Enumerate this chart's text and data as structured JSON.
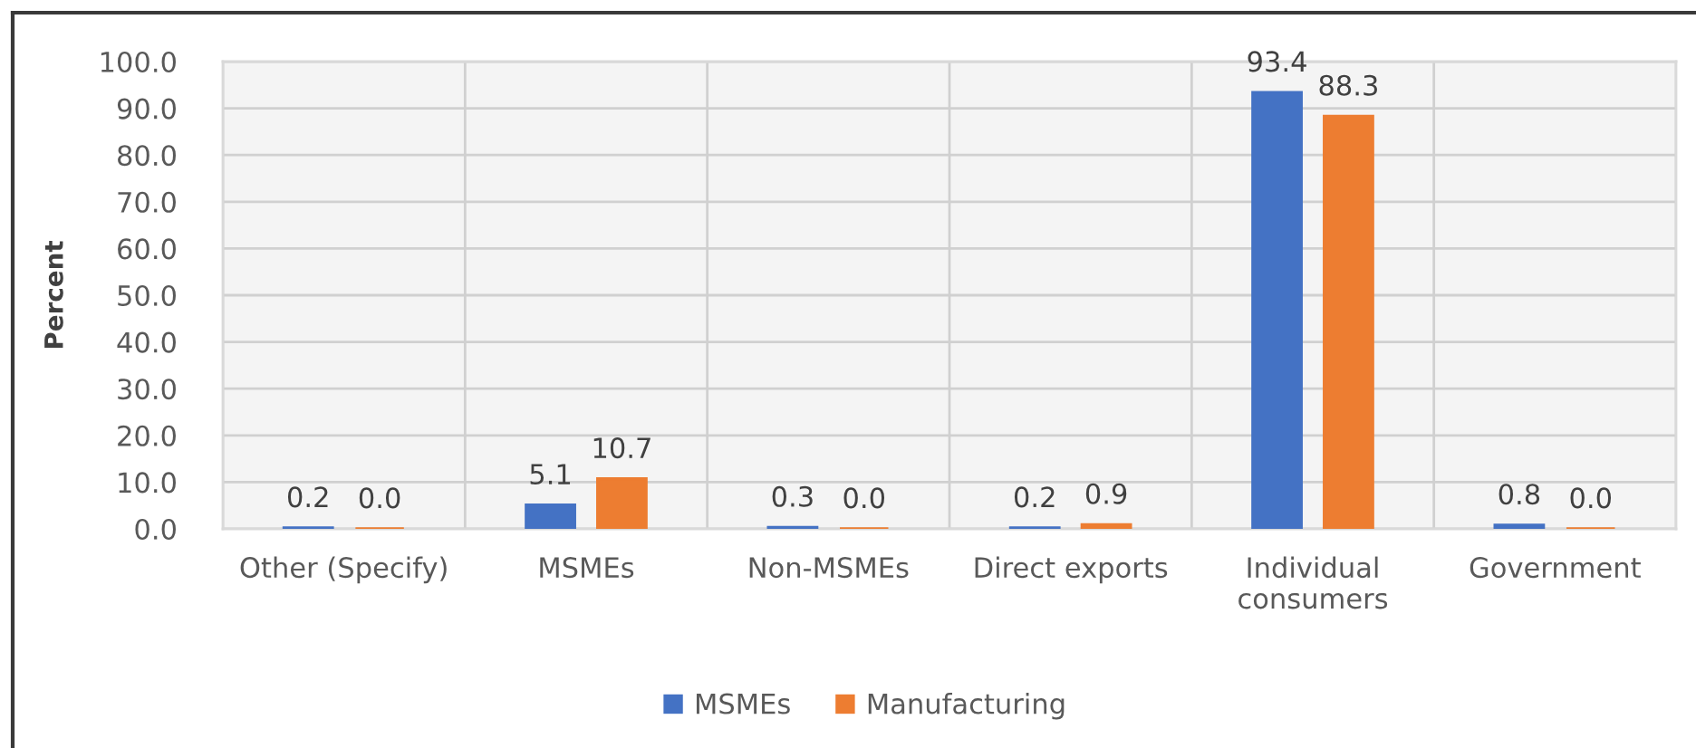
{
  "chart_data": {
    "type": "bar",
    "ylabel": "Percent",
    "categories": [
      "Other (Specify)",
      "MSMEs",
      "Non-MSMEs",
      "Direct exports",
      "Individual\nconsumers",
      "Government"
    ],
    "series": [
      {
        "name": "MSMEs",
        "color": "#4472c4",
        "values": [
          0.2,
          5.1,
          0.3,
          0.2,
          93.4,
          0.8
        ],
        "value_labels": [
          "0.2",
          "5.1",
          "0.3",
          "0.2",
          "93.4",
          "0.8"
        ]
      },
      {
        "name": "Manufacturing",
        "color": "#ed7d31",
        "values": [
          0.0,
          10.7,
          0.0,
          0.9,
          88.3,
          0.0
        ],
        "value_labels": [
          "0.0",
          "10.7",
          "0.0",
          "0.9",
          "88.3",
          "0.0"
        ]
      }
    ],
    "ylim": [
      0,
      100
    ],
    "yticks": [
      {
        "value": 0,
        "label": "0.0"
      },
      {
        "value": 10,
        "label": "10.0"
      },
      {
        "value": 20,
        "label": "20.0"
      },
      {
        "value": 30,
        "label": "30.0"
      },
      {
        "value": 40,
        "label": "40.0"
      },
      {
        "value": 50,
        "label": "50.0"
      },
      {
        "value": 60,
        "label": "60.0"
      },
      {
        "value": 70,
        "label": "70.0"
      },
      {
        "value": 80,
        "label": "80.0"
      },
      {
        "value": 90,
        "label": "90.0"
      },
      {
        "value": 100,
        "label": "100.0"
      }
    ],
    "grid": true,
    "legend": "bottom"
  }
}
